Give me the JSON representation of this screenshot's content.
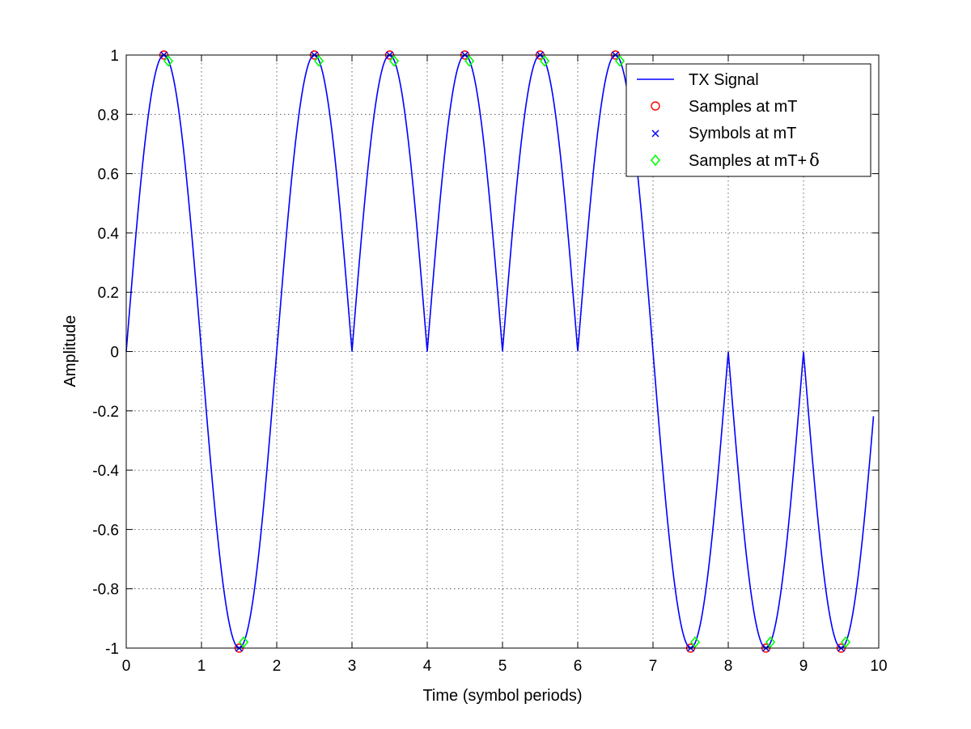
{
  "chart_data": {
    "type": "line",
    "title": "",
    "xlabel": "Time (symbol periods)",
    "ylabel": "Amplitude",
    "xlim": [
      0,
      10
    ],
    "ylim": [
      -1,
      1
    ],
    "x_ticks": [
      0,
      1,
      2,
      3,
      4,
      5,
      6,
      7,
      8,
      9,
      10
    ],
    "x_tick_labels": [
      "0",
      "1",
      "2",
      "3",
      "4",
      "5",
      "6",
      "7",
      "8",
      "9",
      "10"
    ],
    "y_ticks": [
      -1,
      -0.8,
      -0.6,
      -0.4,
      -0.2,
      0,
      0.2,
      0.4,
      0.6,
      0.8,
      1
    ],
    "y_tick_labels": [
      "-1",
      "-0.8",
      "-0.6",
      "-0.4",
      "-0.2",
      "0",
      "0.2",
      "0.4",
      "0.6",
      "0.8",
      "1"
    ],
    "grid": true,
    "legend_position": "top-right",
    "symbols": [
      1,
      -1,
      1,
      1,
      1,
      1,
      1,
      -1,
      -1,
      -1
    ],
    "sample_offset": 0.06,
    "series": [
      {
        "name": "TX Signal",
        "kind": "line",
        "color": "#0000ff",
        "legend_label": "TX Signal",
        "description_points": "per symbol period k: y(t) = symbols[k] * sin(pi * (t - k)), t in [k, k+1]"
      },
      {
        "name": "Samples at mT",
        "kind": "marker-circle",
        "color": "#ff0000",
        "legend_label": "Samples at mT",
        "x": [
          0.5,
          1.5,
          2.5,
          3.5,
          4.5,
          5.5,
          6.5,
          7.5,
          8.5,
          9.5
        ],
        "y": [
          1,
          -1,
          1,
          1,
          1,
          1,
          1,
          -1,
          -1,
          -1
        ]
      },
      {
        "name": "Symbols at mT",
        "kind": "marker-x",
        "color": "#0000ff",
        "legend_label": "Symbols at mT",
        "x": [
          0.5,
          1.5,
          2.5,
          3.5,
          4.5,
          5.5,
          6.5,
          7.5,
          8.5,
          9.5
        ],
        "y": [
          1,
          -1,
          1,
          1,
          1,
          1,
          1,
          -1,
          -1,
          -1
        ]
      },
      {
        "name": "Samples at mT+δ",
        "kind": "marker-diamond",
        "color": "#00ff00",
        "legend_label": "Samples at mT+",
        "legend_symbol": "δ",
        "x": [
          0.56,
          1.56,
          2.56,
          3.56,
          4.56,
          5.56,
          6.56,
          7.56,
          8.56,
          9.56
        ],
        "y": [
          0.98,
          -0.98,
          0.98,
          0.98,
          0.98,
          0.98,
          0.98,
          -0.98,
          -0.98,
          -0.98
        ]
      }
    ]
  }
}
